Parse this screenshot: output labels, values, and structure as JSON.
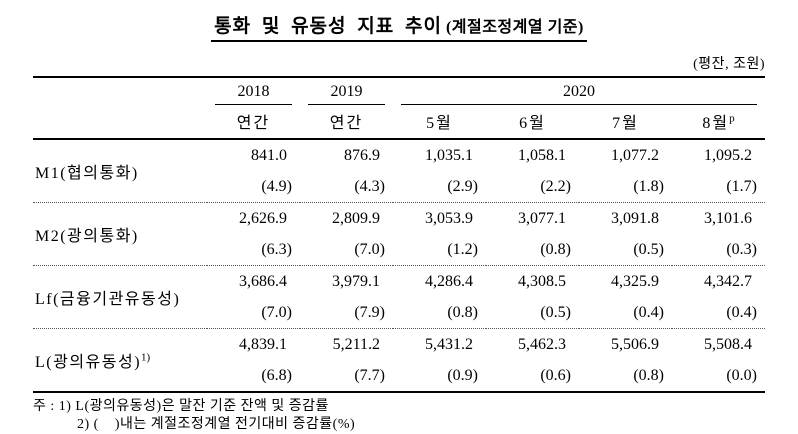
{
  "title": {
    "main": "통화 및 유동성 지표 추이",
    "sub": "(계절조정계열 기준)"
  },
  "unit_note": "(평잔, 조원)",
  "table": {
    "header": {
      "years": [
        "2018",
        "2019",
        "2020"
      ],
      "subcols": [
        {
          "label": "연간",
          "sup": ""
        },
        {
          "label": "연간",
          "sup": ""
        },
        {
          "label": "5월",
          "sup": ""
        },
        {
          "label": "6월",
          "sup": ""
        },
        {
          "label": "7월",
          "sup": ""
        },
        {
          "label": "8월",
          "sup": "p"
        }
      ]
    },
    "rows": [
      {
        "label": "M1(협의통화)",
        "label_sup": "",
        "values": [
          "841.0",
          "876.9",
          "1,035.1",
          "1,058.1",
          "1,077.2",
          "1,095.2"
        ],
        "pcts": [
          "(4.9)",
          "(4.3)",
          "(2.9)",
          "(2.2)",
          "(1.8)",
          "(1.7)"
        ]
      },
      {
        "label": "M2(광의통화)",
        "label_sup": "",
        "values": [
          "2,626.9",
          "2,809.9",
          "3,053.9",
          "3,077.1",
          "3,091.8",
          "3,101.6"
        ],
        "pcts": [
          "(6.3)",
          "(7.0)",
          "(1.2)",
          "(0.8)",
          "(0.5)",
          "(0.3)"
        ]
      },
      {
        "label": "Lf(금융기관유동성)",
        "label_sup": "",
        "values": [
          "3,686.4",
          "3,979.1",
          "4,286.4",
          "4,308.5",
          "4,325.9",
          "4,342.7"
        ],
        "pcts": [
          "(7.0)",
          "(7.9)",
          "(0.8)",
          "(0.5)",
          "(0.4)",
          "(0.4)"
        ]
      },
      {
        "label": "L(광의유동성)",
        "label_sup": "1)",
        "values": [
          "4,839.1",
          "5,211.2",
          "5,431.2",
          "5,462.3",
          "5,506.9",
          "5,508.4"
        ],
        "pcts": [
          "(6.8)",
          "(7.7)",
          "(0.9)",
          "(0.6)",
          "(0.8)",
          "(0.0)"
        ]
      }
    ]
  },
  "footnotes": [
    "주 : 1) L(광의유동성)은 말잔 기준 잔액 및 증감률",
    "2) (    )내는 계절조정계열 전기대비 증감률(%)"
  ]
}
